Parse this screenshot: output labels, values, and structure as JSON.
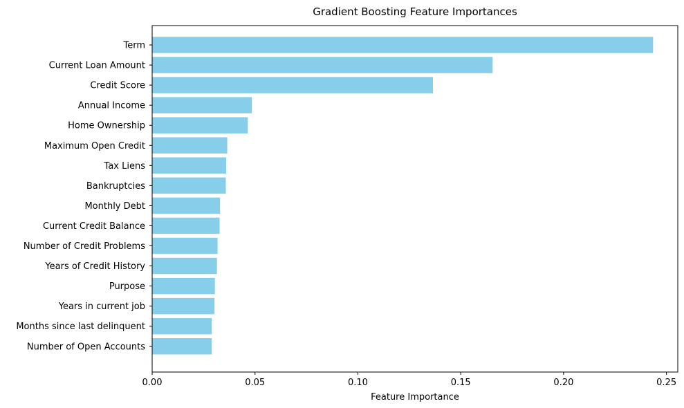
{
  "chart_data": {
    "type": "bar",
    "orientation": "horizontal",
    "title": "Gradient Boosting Feature Importances",
    "xlabel": "Feature Importance",
    "ylabel": "",
    "xlim": [
      0,
      0.2555
    ],
    "x_ticks": [
      "0.00",
      "0.05",
      "0.10",
      "0.15",
      "0.20",
      "0.25"
    ],
    "x_tick_values": [
      0,
      0.05,
      0.1,
      0.15,
      0.2,
      0.25
    ],
    "bar_color": "#87CEEB",
    "grid": false,
    "categories": [
      "Term",
      "Current Loan Amount",
      "Credit Score",
      "Annual Income",
      "Home Ownership",
      "Maximum Open Credit",
      "Tax Liens",
      "Bankruptcies",
      "Monthly Debt",
      "Current Credit Balance",
      "Number of Credit Problems",
      "Years of Credit History",
      "Purpose",
      "Years in current job",
      "Months since last delinquent",
      "Number of Open Accounts"
    ],
    "values": [
      0.2435,
      0.1655,
      0.1365,
      0.0485,
      0.0465,
      0.0365,
      0.036,
      0.0358,
      0.033,
      0.0328,
      0.0318,
      0.0315,
      0.0305,
      0.0303,
      0.029,
      0.029
    ]
  }
}
